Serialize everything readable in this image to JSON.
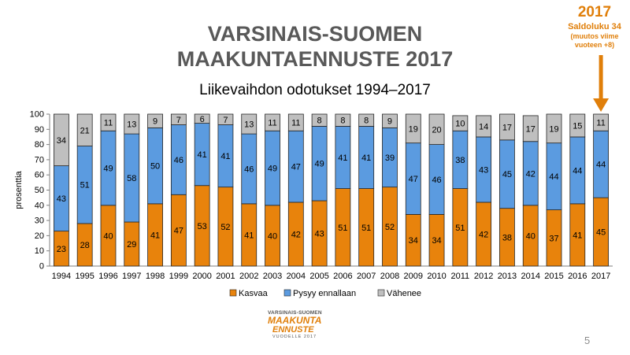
{
  "slide": {
    "title_line1": "VARSINAIS-SUOMEN",
    "title_line2": "MAAKUNTAENNUSTE 2017",
    "page_number": "5"
  },
  "callout": {
    "year": "2017",
    "line1": "Saldoluku 34",
    "line2": "(muutos viime",
    "line3": "vuoteen +8)"
  },
  "logo": {
    "line1": "VARSINAIS-SUOMEN",
    "line2": "MAAKUNTA",
    "line3": "ENNUSTE",
    "line4": "VUODELLE 2017"
  },
  "chart_data": {
    "type": "bar",
    "stacked": true,
    "title": "Liikevaihdon odotukset 1994–2017",
    "ylabel": "prosenttia",
    "xlabel": "",
    "ylim": [
      0,
      100
    ],
    "yticks": [
      0,
      10,
      20,
      30,
      40,
      50,
      60,
      70,
      80,
      90,
      100
    ],
    "grid": false,
    "legend_position": "bottom",
    "categories": [
      "1994",
      "1995",
      "1996",
      "1997",
      "1998",
      "1999",
      "2000",
      "2001",
      "2002",
      "2003",
      "2004",
      "2005",
      "2006",
      "2007",
      "2008",
      "2009",
      "2010",
      "2011",
      "2012",
      "2013",
      "2014",
      "2015",
      "2016",
      "2017"
    ],
    "series": [
      {
        "name": "Kasvaa",
        "color": "#E8830C",
        "values": [
          23,
          28,
          40,
          29,
          41,
          47,
          53,
          52,
          41,
          40,
          42,
          43,
          51,
          51,
          52,
          34,
          34,
          51,
          42,
          38,
          40,
          37,
          41,
          45
        ]
      },
      {
        "name": "Pysyy ennallaan",
        "color": "#5B9BE0",
        "values": [
          43,
          51,
          49,
          58,
          50,
          46,
          41,
          41,
          46,
          49,
          47,
          49,
          41,
          41,
          39,
          47,
          46,
          38,
          43,
          45,
          42,
          44,
          44,
          44
        ]
      },
      {
        "name": "Vähenee",
        "color": "#BFBFBF",
        "values": [
          34,
          21,
          11,
          13,
          9,
          7,
          6,
          7,
          13,
          11,
          11,
          8,
          8,
          8,
          9,
          19,
          20,
          10,
          14,
          17,
          17,
          19,
          15,
          11
        ]
      }
    ]
  },
  "colors": {
    "title": "#595959",
    "accent": "#E07F0A",
    "bar_border": "#262626"
  }
}
